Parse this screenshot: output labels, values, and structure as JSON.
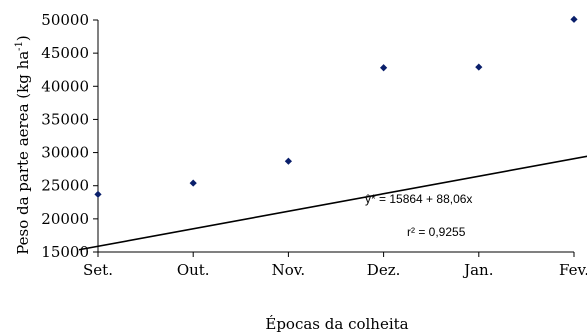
{
  "chart_data": {
    "type": "scatter",
    "categories": [
      "Set.",
      "Out.",
      "Nov.",
      "Dez.",
      "Jan.",
      "Fev."
    ],
    "x_day_index": [
      0,
      30,
      60,
      90,
      120,
      150
    ],
    "values": [
      23700,
      25400,
      28700,
      42800,
      42900,
      50100
    ],
    "xlabel": "Épocas da colheita",
    "ylabel": {
      "base": "Peso da parte aerea (kg ha",
      "sup": "-1",
      "close": ")"
    },
    "ylim": [
      15000,
      50000
    ],
    "yticks": [
      15000,
      20000,
      25000,
      30000,
      35000,
      40000,
      45000,
      50000
    ],
    "trendline": {
      "intercept": 15864,
      "slope": 88.06,
      "x_start": -6.0,
      "x_end": 155.0
    },
    "annotations": {
      "equation": "ŷ* =  15864 + 88,06x",
      "r2": "r² = 0,9255"
    },
    "grid": false,
    "legend": "none",
    "point_color": "#0a1f6b",
    "line_color": "#000000"
  }
}
